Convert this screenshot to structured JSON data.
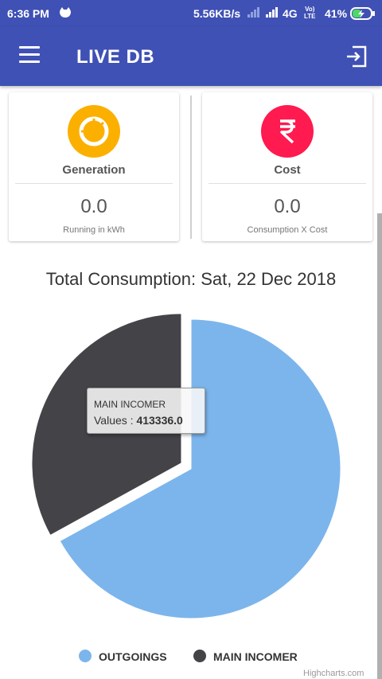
{
  "status_bar": {
    "time": "6:36 PM",
    "net_speed": "5.56KB/s",
    "network": "4G",
    "volte_top": "Vo)",
    "volte_bottom": "LTE",
    "battery": "41%"
  },
  "app_bar": {
    "title": "LIVE DB",
    "menu_icon": "hamburger-menu-icon",
    "logout_icon": "logout-icon"
  },
  "cards": [
    {
      "icon": "pie-icon",
      "icon_color": "#fbb000",
      "label": "Generation",
      "value": "0.0",
      "sub": "Running in kWh"
    },
    {
      "icon": "rupee-icon",
      "icon_color": "#ff1a4f",
      "label": "Cost",
      "value": "0.0",
      "sub": "Consumption X Cost"
    }
  ],
  "chart_data": {
    "type": "pie",
    "title": "Total Consumption: Sat, 22 Dec 2018",
    "series": [
      {
        "name": "OUTGOINGS",
        "color": "#7cb5ec",
        "share": 0.67
      },
      {
        "name": "MAIN INCOMER",
        "color": "#434348",
        "share": 0.33,
        "value": 413336.0,
        "sliced": true
      }
    ],
    "tooltip": {
      "series": "MAIN INCOMER",
      "label": "Values : ",
      "value": "413336.0"
    },
    "legend_position": "bottom",
    "credits": "Highcharts.com"
  }
}
